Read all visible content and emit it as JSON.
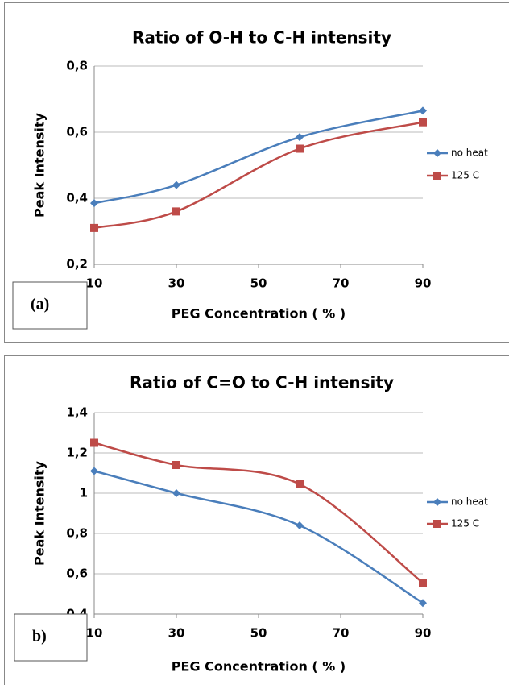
{
  "chart_data": [
    {
      "type": "line",
      "title": "Ratio of O-H to C-H intensity",
      "x_label": "PEG Concentration ( %  )",
      "y_label": "Peak Intensity",
      "panel_label": "(a)",
      "x": [
        10,
        30,
        60,
        90
      ],
      "xlim": [
        10,
        90
      ],
      "xticks": [
        10,
        30,
        50,
        70,
        90
      ],
      "ylim": [
        0.2,
        0.8
      ],
      "yticks": [
        {
          "value": 0.2,
          "label": "0,2"
        },
        {
          "value": 0.4,
          "label": "0,4"
        },
        {
          "value": 0.6,
          "label": "0,6"
        },
        {
          "value": 0.8,
          "label": "0,8"
        }
      ],
      "grid": true,
      "legend": "right",
      "series": [
        {
          "name": "no heat",
          "color": "#4a7ebb",
          "marker": "diamond",
          "values": [
            0.385,
            0.44,
            0.585,
            0.665
          ]
        },
        {
          "name": "125 C",
          "color": "#be4b48",
          "marker": "square",
          "values": [
            0.31,
            0.36,
            0.55,
            0.63
          ]
        }
      ]
    },
    {
      "type": "line",
      "title": "Ratio of C=O to C-H intensity",
      "x_label": "PEG Concentration ( %  )",
      "y_label": "Peak Intensity",
      "panel_label": "b)",
      "x": [
        10,
        30,
        60,
        90
      ],
      "xlim": [
        10,
        90
      ],
      "xticks": [
        10,
        30,
        50,
        70,
        90
      ],
      "ylim": [
        0.4,
        1.4
      ],
      "yticks": [
        {
          "value": 0.4,
          "label": "0,4"
        },
        {
          "value": 0.6,
          "label": "0,6"
        },
        {
          "value": 0.8,
          "label": "0,8"
        },
        1,
        {
          "value": 1.2,
          "label": "1,2"
        },
        {
          "value": 1.4,
          "label": "1,4"
        }
      ],
      "grid": true,
      "legend": "right",
      "series": [
        {
          "name": "no heat",
          "color": "#4a7ebb",
          "marker": "diamond",
          "values": [
            1.11,
            1.0,
            0.84,
            0.455
          ]
        },
        {
          "name": "125 C",
          "color": "#be4b48",
          "marker": "square",
          "values": [
            1.25,
            1.14,
            1.045,
            0.555
          ]
        }
      ]
    }
  ]
}
